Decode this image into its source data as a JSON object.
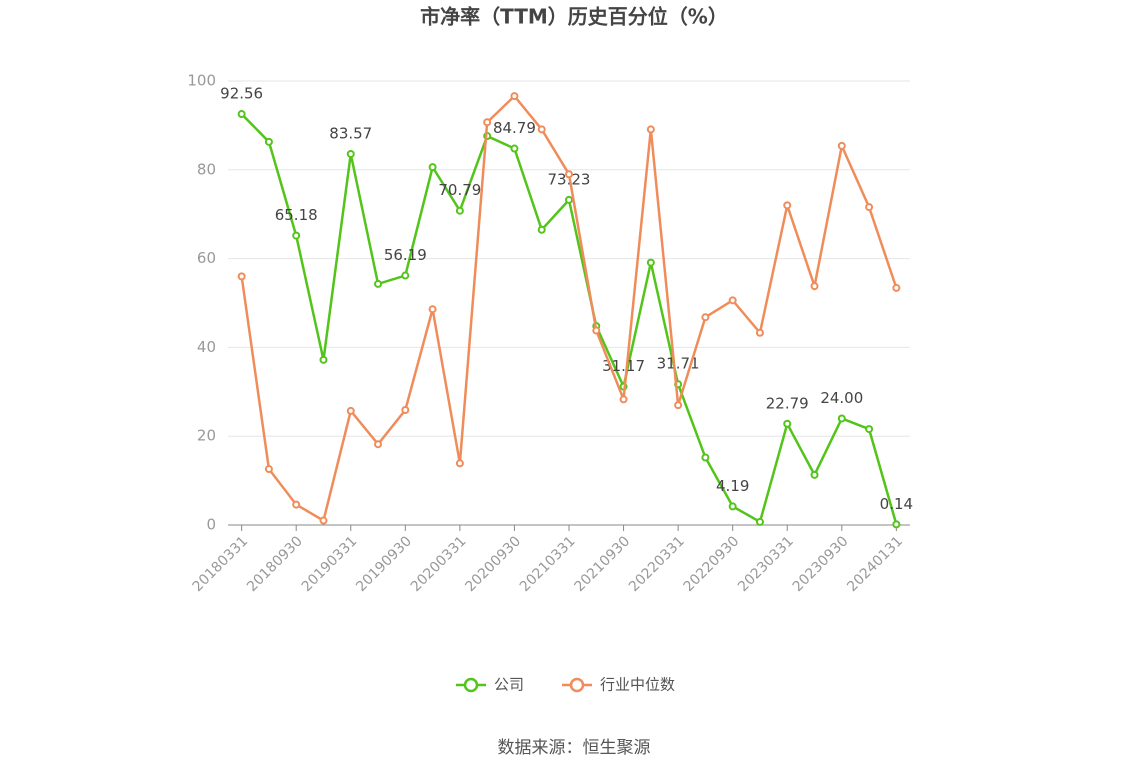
{
  "chart_data": {
    "type": "line",
    "title": "市净率（TTM）历史百分位（%）",
    "categories": [
      "20180331",
      null,
      "20180930",
      null,
      "20190331",
      null,
      "20190930",
      null,
      "20200331",
      null,
      "20200930",
      null,
      "20210331",
      null,
      "20210930",
      null,
      "20220331",
      null,
      "20220930",
      null,
      "20230331",
      null,
      "20230930",
      null,
      "20240131"
    ],
    "series": [
      {
        "name": "公司",
        "color": "#52c41a",
        "values": [
          92.56,
          86.3,
          65.18,
          37.2,
          83.57,
          54.3,
          56.19,
          80.6,
          70.79,
          87.6,
          84.79,
          66.5,
          73.23,
          44.8,
          31.17,
          59.1,
          31.71,
          15.2,
          4.19,
          0.7,
          22.79,
          11.3,
          24.0,
          21.6,
          0.14
        ],
        "value_labels": [
          "92.56",
          null,
          "65.18",
          null,
          "83.57",
          null,
          "56.19",
          null,
          "70.79",
          null,
          "84.79",
          null,
          "73.23",
          null,
          "31.17",
          null,
          "31.71",
          null,
          "4.19",
          null,
          "22.79",
          null,
          "24.00",
          null,
          "0.14"
        ]
      },
      {
        "name": "行业中位数",
        "color": "#f08c5a",
        "values": [
          56.0,
          12.6,
          4.6,
          1.0,
          25.7,
          18.2,
          25.9,
          48.6,
          13.9,
          90.7,
          96.6,
          89.1,
          79.0,
          43.8,
          28.3,
          89.1,
          27.0,
          46.8,
          50.6,
          43.3,
          72.0,
          53.8,
          85.4,
          71.6,
          53.4
        ]
      }
    ],
    "ylim": [
      0,
      100
    ],
    "yticks": [
      0,
      20,
      40,
      60,
      80,
      100
    ],
    "grid": true,
    "source": "数据来源：恒生聚源"
  }
}
